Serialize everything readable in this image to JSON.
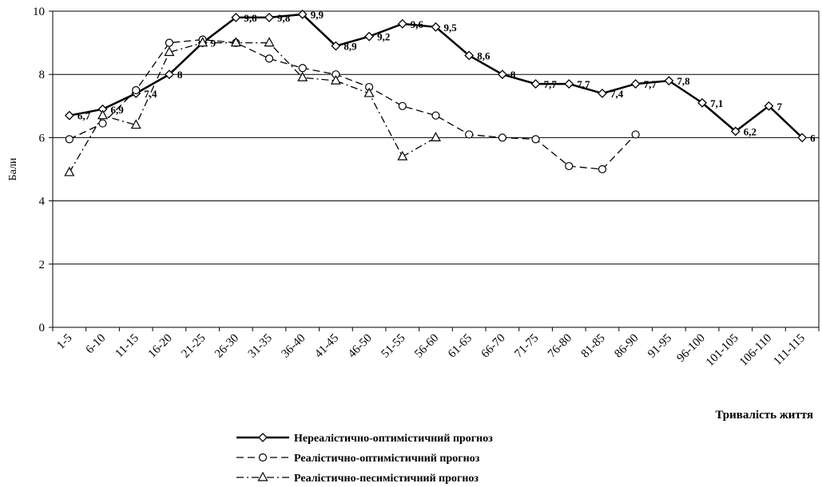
{
  "chart_data": {
    "type": "line",
    "y_label": "Бали",
    "x_label": "Тривалість життя",
    "categories": [
      "1-5",
      "6-10",
      "11-15",
      "16-20",
      "21-25",
      "26-30",
      "31-35",
      "36-40",
      "41-45",
      "46-50",
      "51-55",
      "56-60",
      "61-65",
      "66-70",
      "71-75",
      "76-80",
      "81-85",
      "86-90",
      "91-95",
      "96-100",
      "101-105",
      "106-110",
      "111-115"
    ],
    "series": [
      {
        "name": "Нереалістично-оптимістичний прогноз",
        "color": "#000000",
        "dash": "solid",
        "marker": "diamond",
        "values": [
          6.7,
          6.9,
          7.4,
          8,
          9,
          9.8,
          9.8,
          9.9,
          8.9,
          9.2,
          9.6,
          9.5,
          8.6,
          8,
          7.7,
          7.7,
          7.4,
          7.7,
          7.8,
          7.1,
          6.2,
          7,
          6
        ],
        "value_labels": [
          "6,7",
          "6,9",
          "7,4",
          "8",
          "9",
          "9,8",
          "9,8",
          "9,9",
          "8,9",
          "9,2",
          "9,6",
          "9,5",
          "8,6",
          "8",
          "7,7",
          "7,7",
          "7,4",
          "7,7",
          "7,8",
          "7,1",
          "6,2",
          "7",
          "6"
        ]
      },
      {
        "name": "Реалістично-оптимістичний прогноз",
        "color": "#000000",
        "dash": "dashed",
        "marker": "circle",
        "values": [
          5.95,
          6.45,
          7.5,
          9.0,
          9.1,
          9.0,
          8.5,
          8.2,
          8.0,
          7.6,
          7.0,
          6.7,
          6.1,
          6.0,
          5.95,
          5.1,
          5.0,
          6.1,
          null,
          null,
          null,
          null,
          null
        ]
      },
      {
        "name": "Реалістично-песимістичний прогноз",
        "color": "#000000",
        "dash": "dashdot",
        "marker": "triangle",
        "values": [
          4.9,
          6.7,
          6.4,
          8.7,
          9.0,
          9.0,
          9.0,
          7.9,
          7.8,
          7.4,
          5.4,
          6.0,
          null,
          null,
          null,
          null,
          null,
          null,
          null,
          null,
          null,
          null,
          null
        ]
      }
    ],
    "ylim": [
      0,
      10
    ],
    "yticks": [
      0,
      2,
      4,
      6,
      8,
      10
    ],
    "grid": true
  }
}
